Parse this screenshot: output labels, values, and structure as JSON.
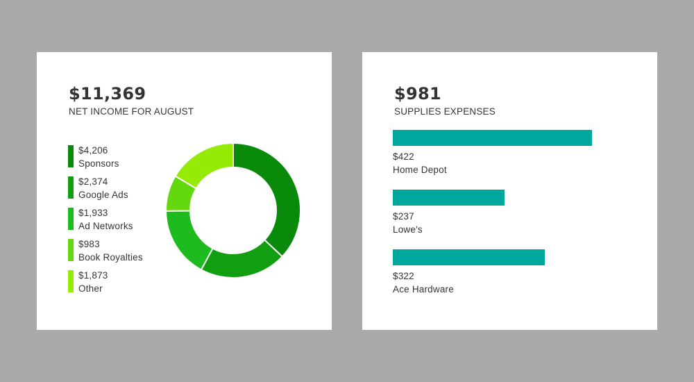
{
  "income_card": {
    "total": "$11,369",
    "subtitle": "NET INCOME FOR AUGUST"
  },
  "supplies_card": {
    "total": "$981",
    "subtitle": "SUPPLIES EXPENSES"
  },
  "chart_data": [
    {
      "type": "pie",
      "variant": "donut",
      "categories": [
        "Sponsors",
        "Google Ads",
        "Ad Networks",
        "Book Royalties",
        "Other"
      ],
      "values": [
        4206,
        2374,
        1933,
        983,
        1873
      ],
      "labels": [
        "$4,206",
        "$2,374",
        "$1,933",
        "$983",
        "$1,873"
      ],
      "colors": [
        "#0a8a0a",
        "#119f11",
        "#1dbb1d",
        "#63d80f",
        "#95ea06"
      ],
      "legend": "left"
    },
    {
      "type": "bar",
      "orientation": "horizontal",
      "categories": [
        "Home Depot",
        "Lowe's",
        "Ace Hardware"
      ],
      "values": [
        422,
        237,
        322
      ],
      "labels": [
        "$422",
        "$237",
        "$322"
      ],
      "color": "#00a79d",
      "xlim": [
        0,
        467
      ]
    }
  ]
}
